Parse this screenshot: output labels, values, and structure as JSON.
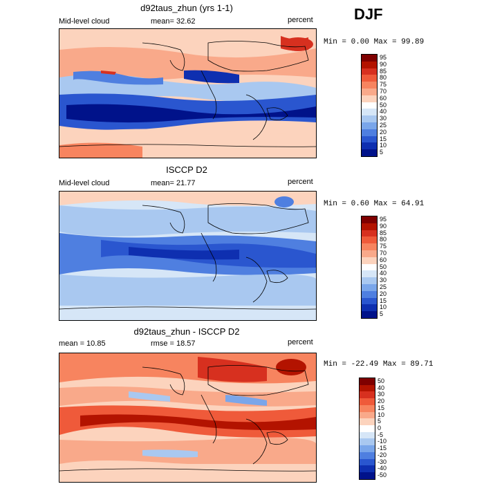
{
  "season": "DJF",
  "panels": [
    {
      "title": "d92taus_zhun (yrs 1-1)",
      "left_label": "Mid-level cloud",
      "mid_label": "mean=  32.62",
      "right_label": "percent",
      "stats": "Min =    0.00 Max =  99.89"
    },
    {
      "title": "ISCCP D2",
      "left_label": "Mid-level cloud",
      "mid_label": "mean=  21.77",
      "right_label": "percent",
      "stats": "Min =   0.60 Max =  64.91"
    },
    {
      "title": "d92taus_zhun - ISCCP D2",
      "left_label": "mean =  10.85",
      "mid_label": "rmse =  18.57",
      "right_label": "percent",
      "stats": "Min = -22.49 Max =  89.71"
    }
  ],
  "colorbars": {
    "abs": {
      "labels": [
        "95",
        "90",
        "85",
        "80",
        "75",
        "70",
        "60",
        "50",
        "40",
        "30",
        "25",
        "20",
        "15",
        "10",
        "5"
      ],
      "colors": [
        "#7f0000",
        "#b31300",
        "#d7301f",
        "#ef5a3a",
        "#f7845f",
        "#f9a98a",
        "#fcd3bd",
        "#ffffff",
        "#d6e6f7",
        "#a9c8f0",
        "#7aa6ea",
        "#4f7fe0",
        "#2a56cf",
        "#0e2fb0",
        "#00128a"
      ]
    },
    "diff": {
      "labels": [
        "50",
        "40",
        "30",
        "20",
        "15",
        "10",
        "5",
        "0",
        "-5",
        "-10",
        "-15",
        "-20",
        "-30",
        "-40",
        "-50"
      ],
      "colors": [
        "#7f0000",
        "#b31300",
        "#d7301f",
        "#ef5a3a",
        "#f7845f",
        "#f9a98a",
        "#fcd3bd",
        "#ffffff",
        "#d6e6f7",
        "#a9c8f0",
        "#7aa6ea",
        "#4f7fe0",
        "#2a56cf",
        "#0e2fb0",
        "#00128a"
      ]
    }
  },
  "chart_data": [
    {
      "type": "heatmap",
      "title": "d92taus_zhun (yrs 1-1)",
      "variable": "Mid-level cloud",
      "units": "percent",
      "mean": 32.62,
      "min": 0.0,
      "max": 99.89,
      "levels": [
        5,
        10,
        15,
        20,
        25,
        30,
        40,
        50,
        60,
        70,
        75,
        80,
        85,
        90,
        95
      ]
    },
    {
      "type": "heatmap",
      "title": "ISCCP D2",
      "variable": "Mid-level cloud",
      "units": "percent",
      "mean": 21.77,
      "min": 0.6,
      "max": 64.91,
      "levels": [
        5,
        10,
        15,
        20,
        25,
        30,
        40,
        50,
        60,
        70,
        75,
        80,
        85,
        90,
        95
      ]
    },
    {
      "type": "heatmap",
      "title": "d92taus_zhun - ISCCP D2",
      "units": "percent",
      "mean": 10.85,
      "rmse": 18.57,
      "min": -22.49,
      "max": 89.71,
      "levels": [
        -50,
        -40,
        -30,
        -20,
        -15,
        -10,
        -5,
        0,
        5,
        10,
        15,
        20,
        30,
        40,
        50
      ]
    }
  ]
}
